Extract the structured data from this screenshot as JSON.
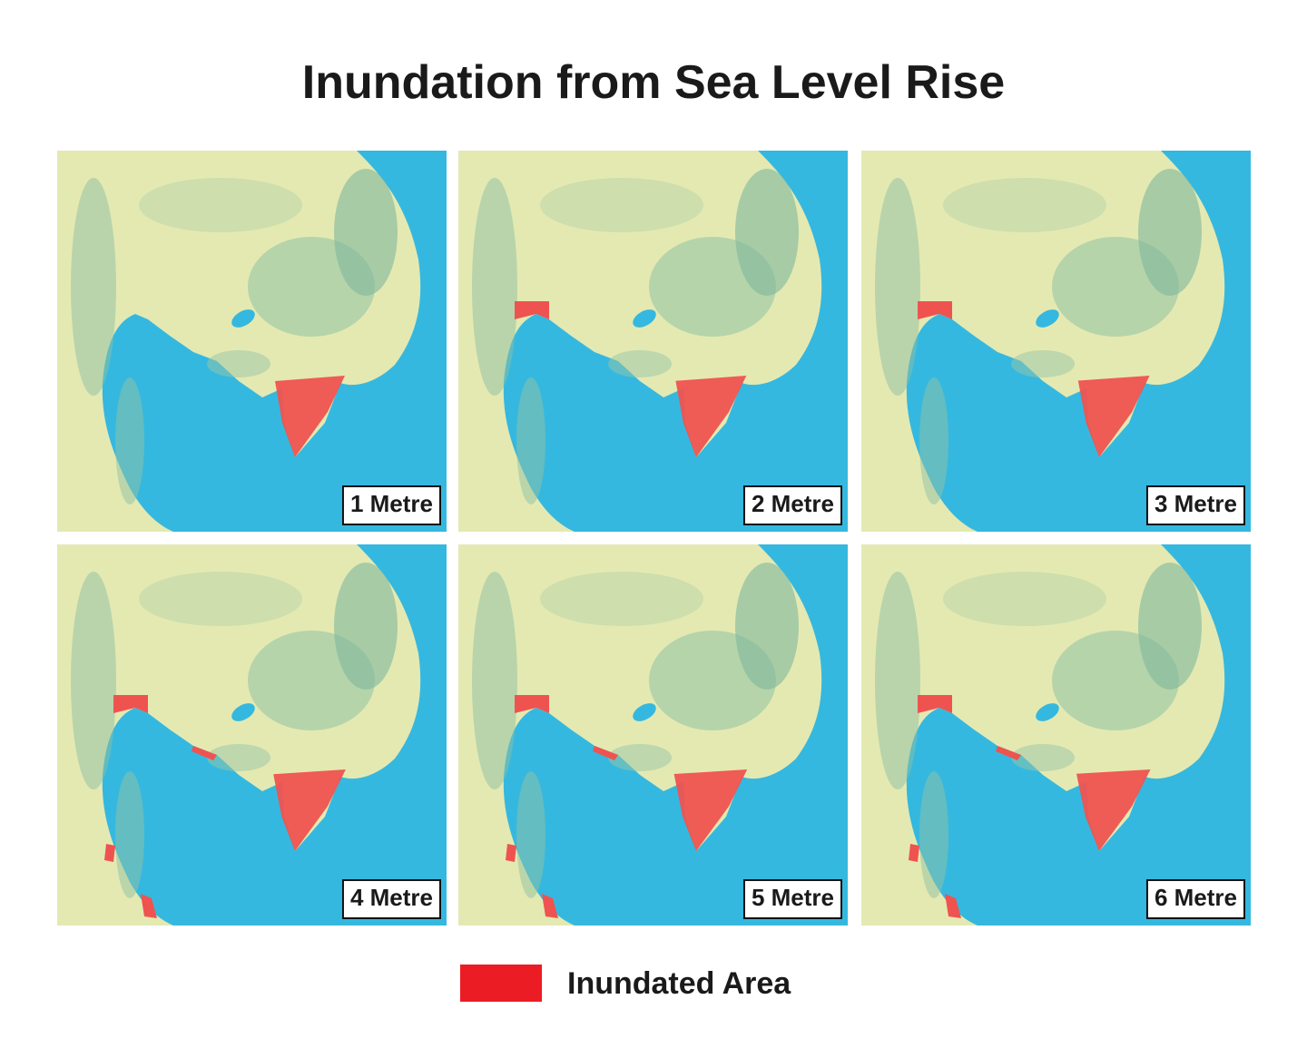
{
  "title": "Inundation from Sea Level Rise",
  "panels": [
    {
      "label": "1 Metre"
    },
    {
      "label": "2 Metre"
    },
    {
      "label": "3 Metre"
    },
    {
      "label": "4 Metre"
    },
    {
      "label": "5 Metre"
    },
    {
      "label": "6 Metre"
    }
  ],
  "legend": {
    "label": "Inundated Area"
  }
}
